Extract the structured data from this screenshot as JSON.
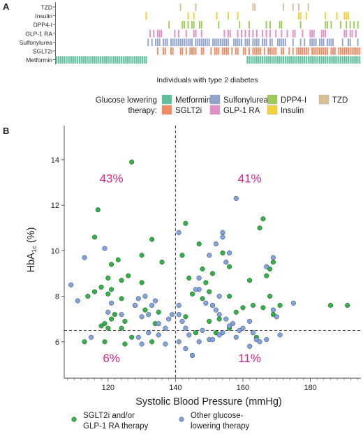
{
  "panel_a": {
    "letter": "A",
    "rows": [
      "TZD",
      "Insulin",
      "DPP4-I",
      "GLP-1 RA",
      "Sulfonylurea",
      "SGLT2i",
      "Metformin"
    ],
    "xlabel": "Individuals with type 2 diabetes",
    "legend_title_line1": "Glucose lowering",
    "legend_title_line2": "therapy:",
    "legend": [
      {
        "key": "metformin",
        "label": "Metformin",
        "color": "#5cbf9b"
      },
      {
        "key": "sulfonylurea",
        "label": "Sulfonylurea",
        "color": "#8fa3cc"
      },
      {
        "key": "dpp4",
        "label": "DPP4-I",
        "color": "#9ccc55"
      },
      {
        "key": "tzd",
        "label": "TZD",
        "color": "#d8bf94"
      },
      {
        "key": "sglt2",
        "label": "SGLT2i",
        "color": "#f08a62"
      },
      {
        "key": "glp1",
        "label": "GLP-1 RA",
        "color": "#e28ec6"
      },
      {
        "key": "insulin",
        "label": "Insulin",
        "color": "#f2d03a"
      }
    ],
    "row_colors": [
      "#d8bf94",
      "#f2d03a",
      "#9ccc55",
      "#e28ec6",
      "#8fa3cc",
      "#f08a62",
      "#5cbf9b"
    ]
  },
  "chart_data": {
    "type": "scatter",
    "letter": "B",
    "xlabel": "Systolic Blood Pressure (mmHg)",
    "ylabel_main": "HbA",
    "ylabel_sub": "1c",
    "ylabel_unit": " (%)",
    "xlim": [
      107,
      195
    ],
    "ylim": [
      4.4,
      15.5
    ],
    "xticks": [
      120,
      140,
      160,
      180
    ],
    "yticks": [
      6,
      8,
      10,
      12,
      14
    ],
    "vline_x": 140,
    "hline_y": 6.5,
    "quadrant_labels": [
      {
        "text": "43%",
        "x": 121,
        "y": 13.0
      },
      {
        "text": "41%",
        "x": 162,
        "y": 13.0
      },
      {
        "text": "6%",
        "x": 121,
        "y": 5.1
      },
      {
        "text": "11%",
        "x": 162,
        "y": 5.1
      }
    ],
    "series": [
      {
        "name": "SGLT2i and/or GLP-1 RA therapy",
        "color": "#2fb345",
        "points": [
          [
            127,
            13.9
          ],
          [
            117,
            11.8
          ],
          [
            116,
            10.6
          ],
          [
            133,
            10.5
          ],
          [
            130,
            9.8
          ],
          [
            123,
            9.6
          ],
          [
            136,
            9.5
          ],
          [
            121,
            9.4
          ],
          [
            126,
            8.9
          ],
          [
            120,
            8.8
          ],
          [
            124,
            8.7
          ],
          [
            130,
            8.6
          ],
          [
            118,
            8.4
          ],
          [
            121,
            8.3
          ],
          [
            114,
            8.0
          ],
          [
            120,
            8.1
          ],
          [
            124,
            7.9
          ],
          [
            116,
            8.2
          ],
          [
            128,
            7.6
          ],
          [
            131,
            7.4
          ],
          [
            135,
            7.3
          ],
          [
            122,
            7.2
          ],
          [
            121,
            7.0
          ],
          [
            119,
            6.8
          ],
          [
            125,
            6.9
          ],
          [
            134,
            6.8
          ],
          [
            118,
            6.7
          ],
          [
            124,
            6.6
          ],
          [
            120,
            6.6
          ],
          [
            127,
            6.2
          ],
          [
            133,
            6.0
          ],
          [
            119,
            6.0
          ],
          [
            113,
            6.0
          ],
          [
            125,
            5.9
          ],
          [
            143,
            11.2
          ],
          [
            147,
            10.3
          ],
          [
            142,
            9.8
          ],
          [
            154,
            9.9
          ],
          [
            148,
            9.2
          ],
          [
            156,
            9.3
          ],
          [
            151,
            9.0
          ],
          [
            144,
            8.8
          ],
          [
            149,
            8.6
          ],
          [
            166,
            11.4
          ],
          [
            165,
            11.0
          ],
          [
            169,
            9.5
          ],
          [
            168,
            9.2
          ],
          [
            167,
            8.9
          ],
          [
            162,
            8.7
          ],
          [
            150,
            8.2
          ],
          [
            145,
            8.1
          ],
          [
            156,
            8.0
          ],
          [
            148,
            7.9
          ],
          [
            151,
            7.6
          ],
          [
            158,
            7.3
          ],
          [
            153,
            7.0
          ],
          [
            150,
            6.9
          ],
          [
            143,
            7.1
          ],
          [
            146,
            6.4
          ],
          [
            152,
            6.4
          ],
          [
            156,
            6.6
          ],
          [
            166,
            7.5
          ],
          [
            168,
            8.0
          ],
          [
            171,
            7.6
          ],
          [
            163,
            7.6
          ],
          [
            160,
            7.5
          ],
          [
            169,
            7.2
          ],
          [
            186,
            7.6
          ],
          [
            191,
            7.6
          ],
          [
            145,
            5.4
          ],
          [
            164,
            6.2
          ]
        ]
      },
      {
        "name": "Other glucose-lowering therapy",
        "color": "#7fa4e0",
        "points": [
          [
            109,
            8.5
          ],
          [
            111,
            7.8
          ],
          [
            113,
            9.7
          ],
          [
            115,
            6.2
          ],
          [
            119,
            10.1
          ],
          [
            121,
            7.7
          ],
          [
            120,
            7.3
          ],
          [
            124,
            7.2
          ],
          [
            128,
            7.6
          ],
          [
            130,
            7.1
          ],
          [
            129,
            7.9
          ],
          [
            131,
            8.0
          ],
          [
            133,
            7.6
          ],
          [
            132,
            7.2
          ],
          [
            134,
            7.8
          ],
          [
            135,
            6.8
          ],
          [
            137,
            6.6
          ],
          [
            138,
            7.0
          ],
          [
            139,
            7.2
          ],
          [
            135,
            6.3
          ],
          [
            137,
            5.9
          ],
          [
            130,
            5.9
          ],
          [
            129,
            6.2
          ],
          [
            132,
            6.4
          ],
          [
            141,
            10.8
          ],
          [
            141,
            7.6
          ],
          [
            141,
            7.2
          ],
          [
            142,
            6.9
          ],
          [
            143,
            6.6
          ],
          [
            144,
            6.3
          ],
          [
            141,
            6.0
          ],
          [
            143,
            5.7
          ],
          [
            145,
            5.4
          ],
          [
            147,
            8.3
          ],
          [
            149,
            7.7
          ],
          [
            151,
            7.6
          ],
          [
            152,
            7.4
          ],
          [
            153,
            7.2
          ],
          [
            155,
            7.0
          ],
          [
            156,
            6.7
          ],
          [
            157,
            6.8
          ],
          [
            159,
            6.5
          ],
          [
            160,
            6.6
          ],
          [
            162,
            6.9
          ],
          [
            163,
            6.4
          ],
          [
            164,
            6.1
          ],
          [
            165,
            6.0
          ],
          [
            167,
            6.1
          ],
          [
            162,
            5.8
          ],
          [
            158,
            12.3
          ],
          [
            154,
            10.8
          ],
          [
            154,
            10.6
          ],
          [
            152,
            10.3
          ],
          [
            150,
            9.8
          ],
          [
            155,
            9.5
          ],
          [
            153,
            8.0
          ],
          [
            146,
            8.3
          ],
          [
            156,
            9.9
          ],
          [
            169,
            9.7
          ],
          [
            167,
            9.3
          ],
          [
            169,
            7.4
          ],
          [
            170,
            7.1
          ],
          [
            175,
            7.7
          ],
          [
            171,
            6.3
          ],
          [
            158,
            6.2
          ],
          [
            154,
            6.4
          ],
          [
            148,
            6.5
          ],
          [
            147,
            6.0
          ],
          [
            150,
            6.1
          ],
          [
            151,
            6.1
          ],
          [
            153,
            6.3
          ],
          [
            147,
            8.8
          ]
        ]
      }
    ],
    "legend": [
      {
        "line1": "SGLT2i and/or",
        "line2": "GLP-1 RA therapy",
        "color": "#2fb345"
      },
      {
        "line1": "Other glucose-",
        "line2": "lowering therapy",
        "color": "#7fa4e0"
      }
    ]
  }
}
